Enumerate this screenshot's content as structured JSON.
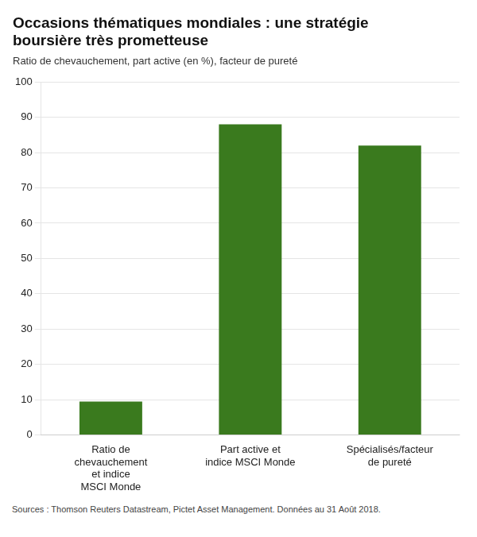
{
  "chart_data": {
    "type": "bar",
    "title": [
      "Occasions thématiques mondiales : une stratégie",
      "boursière très prometteuse"
    ],
    "subtitle": "Ratio de chevauchement, part active (en %), facteur de pureté",
    "categories": [
      "Ratio de\nchevauchement\net indice\nMSCI Monde",
      "Part active et\nindice MSCI Monde",
      "Spécialisés/facteur\nde pureté"
    ],
    "values": [
      9.5,
      88,
      82
    ],
    "color": "#3a7a1e",
    "ylim": [
      0,
      100
    ],
    "yticks": [
      0,
      10,
      20,
      30,
      40,
      50,
      60,
      70,
      80,
      90,
      100
    ],
    "grid": true,
    "annotations": [
      "Sources : Thomson Reuters Datastream, Pictet Asset Management. Données au 31 Août 2018."
    ]
  }
}
